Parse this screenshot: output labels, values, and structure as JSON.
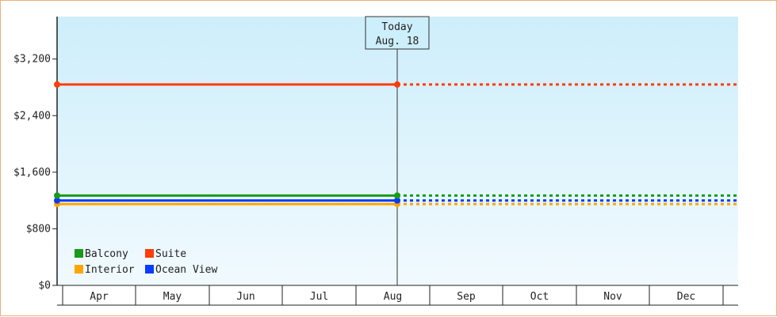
{
  "chart_data": {
    "type": "line",
    "title": "",
    "xlabel": "",
    "ylabel": "",
    "x_categories": [
      "Apr",
      "May",
      "Jun",
      "Jul",
      "Aug",
      "Sep",
      "Oct",
      "Nov",
      "Dec"
    ],
    "ylim": [
      0,
      3800
    ],
    "y_ticks": [
      0,
      800,
      1600,
      2400,
      3200
    ],
    "y_tick_labels": [
      "$0",
      "$800",
      "$1,600",
      "$2,400",
      "$3,200"
    ],
    "today": {
      "label": "Today",
      "date": "Aug. 18",
      "x": "Aug"
    },
    "series": [
      {
        "name": "Balcony",
        "color": "#1a9a1a",
        "start": "Apr",
        "today_value": 1270,
        "values": {
          "Apr": 1270,
          "Aug": 1270
        },
        "projected": 1270
      },
      {
        "name": "Suite",
        "color": "#ff3c0a",
        "start": "Apr",
        "today_value": 2840,
        "values": {
          "Apr": 2840,
          "Aug": 2840
        },
        "projected": 2840
      },
      {
        "name": "Interior",
        "color": "#ffa500",
        "start": "Apr",
        "today_value": 1150,
        "values": {
          "Apr": 1150,
          "Aug": 1150
        },
        "projected": 1150
      },
      {
        "name": "Ocean View",
        "color": "#0a3cff",
        "start": "Apr",
        "today_value": 1200,
        "values": {
          "Apr": 1200,
          "Aug": 1200
        },
        "projected": 1200
      }
    ],
    "legend_position": "bottom-left",
    "grid": false
  }
}
